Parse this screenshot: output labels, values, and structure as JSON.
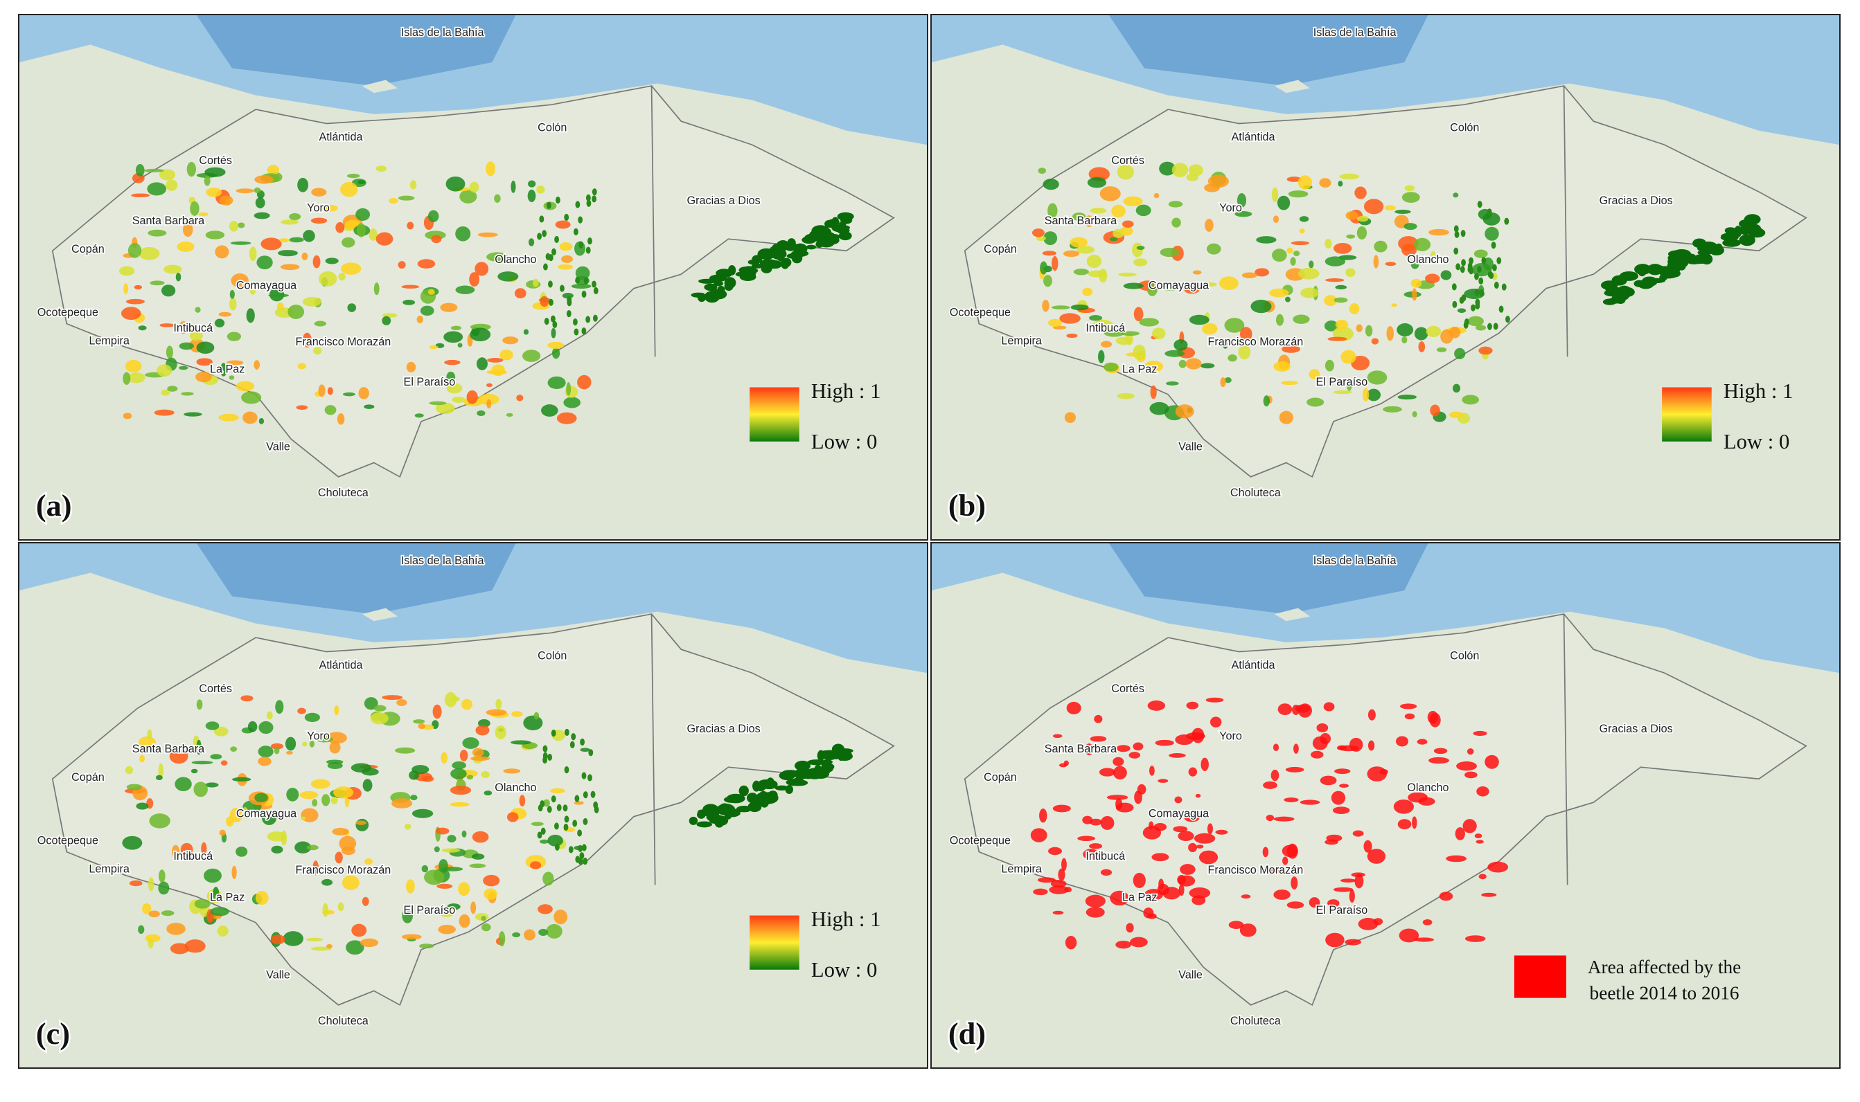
{
  "panels": [
    {
      "label": "(a)",
      "legend_high": "High : 1",
      "legend_low": "Low : 0"
    },
    {
      "label": "(b)",
      "legend_high": "High : 1",
      "legend_low": "Low : 0"
    },
    {
      "label": "(c)",
      "legend_high": "High : 1",
      "legend_low": "Low : 0"
    },
    {
      "label": "(d)",
      "legend_lines": [
        "Area affected by the",
        "beetle 2014 to 2016"
      ]
    }
  ],
  "places": [
    "Islas de la Bahía",
    "Cortés",
    "Atlántida",
    "Colón",
    "Gracias a Dios",
    "Santa Barbara",
    "Yoro",
    "Copán",
    "Olancho",
    "Comayagua",
    "Ocotepeque",
    "Intibucá",
    "Lempira",
    "Francisco Morazán",
    "La Paz",
    "El Paraíso",
    "Valle",
    "Choluteca"
  ]
}
